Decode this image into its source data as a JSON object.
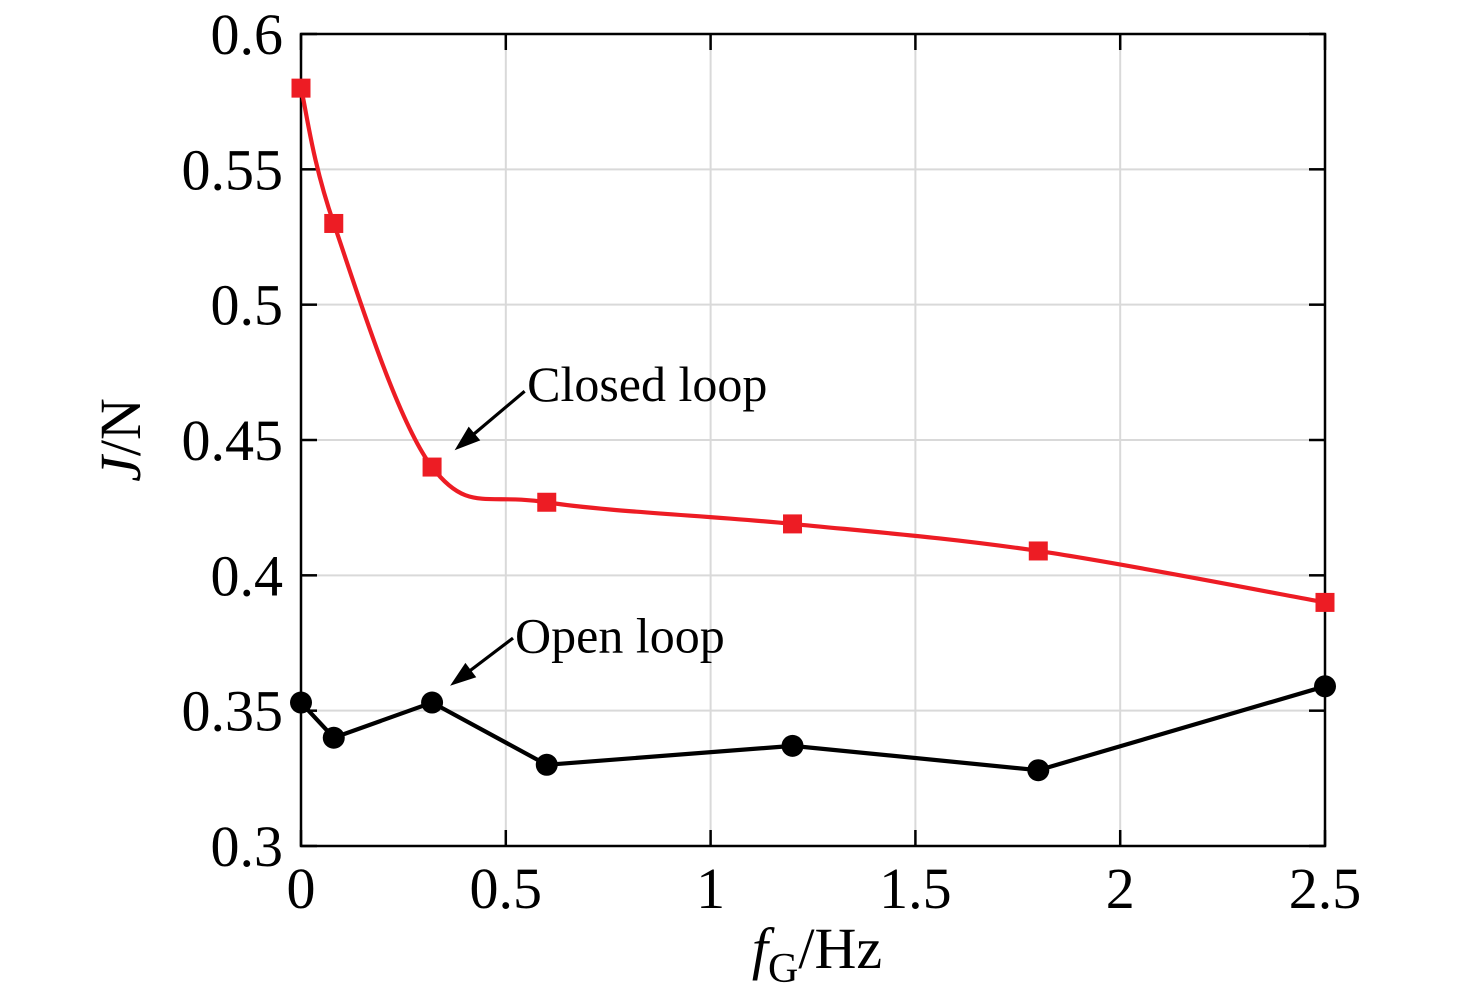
{
  "chart_data": {
    "type": "line",
    "title": "",
    "xlabel": "f_G/Hz",
    "xlabel_parts": [
      {
        "t": "f",
        "style": "italic"
      },
      {
        "t": "G",
        "style": "sub"
      },
      {
        "t": "/Hz",
        "style": "normal"
      }
    ],
    "ylabel": "J/N",
    "ylabel_parts": [
      {
        "t": "J",
        "style": "italic"
      },
      {
        "t": "/N",
        "style": "normal"
      }
    ],
    "xlim": [
      0,
      2.5
    ],
    "ylim": [
      0.3,
      0.6
    ],
    "x_ticks": [
      0,
      0.5,
      1,
      1.5,
      2,
      2.5
    ],
    "x_tick_labels": [
      "0",
      "0.5",
      "1",
      "1.5",
      "2",
      "2.5"
    ],
    "y_ticks": [
      0.3,
      0.35,
      0.4,
      0.45,
      0.5,
      0.55,
      0.6
    ],
    "y_tick_labels": [
      "0.3",
      "0.35",
      "0.4",
      "0.45",
      "0.5",
      "0.55",
      "0.6"
    ],
    "grid": true,
    "legend_position": "none",
    "x": [
      0,
      0.08,
      0.32,
      0.6,
      1.2,
      1.8,
      2.5
    ],
    "series": [
      {
        "name": "Closed loop",
        "color": "#ed1c24",
        "marker": "square",
        "smooth": true,
        "values": [
          0.58,
          0.53,
          0.44,
          0.427,
          0.419,
          0.409,
          0.39
        ]
      },
      {
        "name": "Open loop",
        "color": "#000000",
        "marker": "circle",
        "smooth": false,
        "values": [
          0.353,
          0.34,
          0.353,
          0.33,
          0.337,
          0.328,
          0.359
        ]
      }
    ],
    "annotations": [
      {
        "text": "Closed loop",
        "text_at": [
          0.552,
          0.4645
        ],
        "arrow_from": [
          0.546,
          0.468
        ],
        "arrow_to": [
          0.375,
          0.4462
        ]
      },
      {
        "text": "Open loop",
        "text_at": [
          0.5225,
          0.3715
        ],
        "arrow_from": [
          0.5176,
          0.3768
        ],
        "arrow_to": [
          0.364,
          0.3592
        ]
      }
    ],
    "colors": {
      "grid": "#d9d9d9",
      "axis": "#000000",
      "background": "#ffffff"
    }
  }
}
